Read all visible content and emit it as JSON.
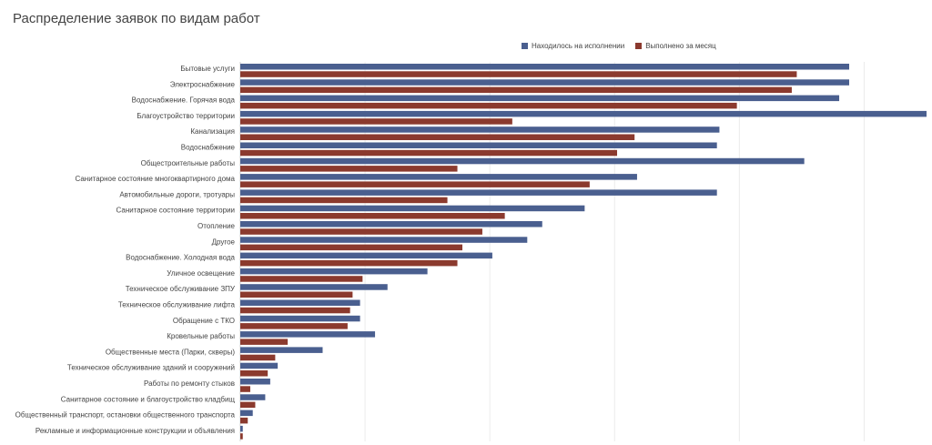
{
  "chart_data": {
    "type": "bar",
    "orientation": "horizontal",
    "title": "Распределение заявок по видам работ",
    "xlabel": "",
    "ylabel": "",
    "xlim": [
      0,
      275
    ],
    "grid": true,
    "legend_position": "top",
    "categories": [
      "Бытовые услуги",
      "Электроснабжение",
      "Водоснабжение. Горячая вода",
      "Благоустройство территории",
      "Канализация",
      "Водоснабжение",
      "Общестроительные работы",
      "Санитарное состояние многоквартирного дома",
      "Автомобильные дороги, тротуары",
      "Санитарное состояние территории",
      "Отопление",
      "Другое",
      "Водоснабжение. Холодная вода",
      "Уличное освещение",
      "Техническое обслуживание ЗПУ",
      "Техническое обслуживание лифта",
      "Обращение с ТКО",
      "Кровельные работы",
      "Общественные места (Парки, скверы)",
      "Техническое обслуживание зданий и сооружений",
      "Работы по ремонту стыков",
      "Санитарное состояние и благоустройство кладбищ",
      "Общественный транспорт, остановки общественного транспорта",
      "Рекламные и информационные конструкции и объявления"
    ],
    "series": [
      {
        "name": "Находилось на исполнении",
        "color": "#4a5f8f",
        "values": [
          244,
          244,
          240,
          275,
          192,
          191,
          226,
          159,
          191,
          138,
          121,
          115,
          101,
          75,
          59,
          48,
          48,
          54,
          33,
          15,
          12,
          10,
          5,
          1
        ]
      },
      {
        "name": "Выполнено за месяц",
        "color": "#8b3a2e",
        "values": [
          223,
          221,
          199,
          109,
          158,
          151,
          87,
          140,
          83,
          106,
          97,
          89,
          87,
          49,
          45,
          44,
          43,
          19,
          14,
          11,
          4,
          6,
          3,
          1
        ]
      }
    ]
  }
}
